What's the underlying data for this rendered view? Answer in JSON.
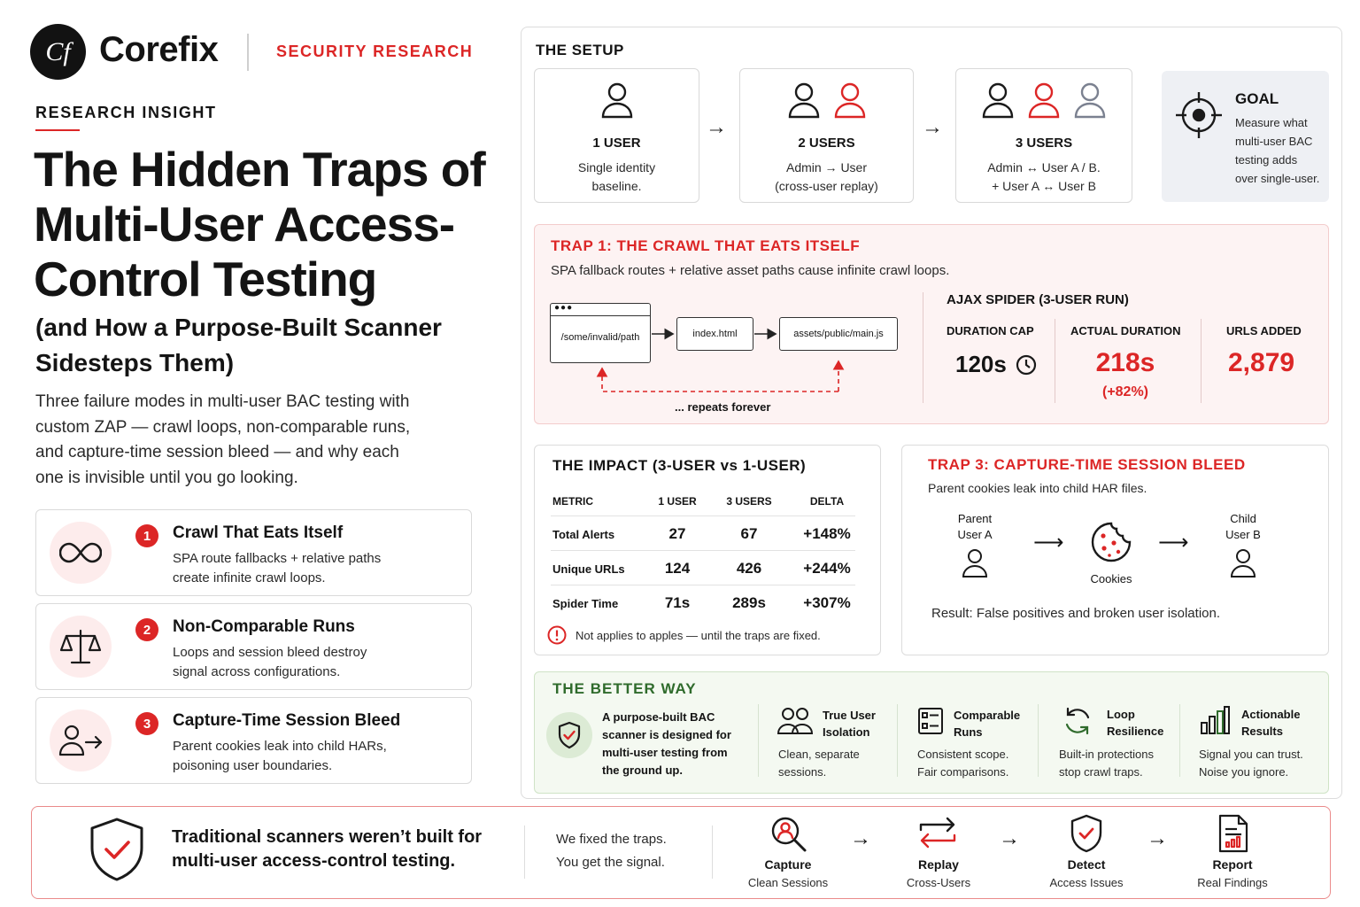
{
  "brand": {
    "logo_mark": "Cf",
    "name": "Corefix",
    "tag": "SECURITY RESEARCH"
  },
  "hero": {
    "kicker": "RESEARCH INSIGHT",
    "title_lines": [
      "The Hidden Traps of",
      "Multi-User Access-",
      "Control Testing"
    ],
    "subtitle_lines": [
      "(and How a Purpose-Built Scanner",
      "Sidesteps Them)"
    ],
    "lead_lines": [
      "Three failure modes in multi-user BAC testing with",
      "custom ZAP — crawl loops, non-comparable runs,",
      "and capture-time session bleed — and why each",
      "one is invisible until you go looking."
    ]
  },
  "traps": [
    {
      "num": "1",
      "title": "Crawl That Eats Itself",
      "desc_lines": [
        "SPA route fallbacks + relative paths",
        "create infinite crawl loops."
      ],
      "icon": "infinity-icon"
    },
    {
      "num": "2",
      "title": "Non-Comparable Runs",
      "desc_lines": [
        "Loops and session bleed destroy",
        "signal across configurations."
      ],
      "icon": "scale-icon"
    },
    {
      "num": "3",
      "title": "Capture-Time Session Bleed",
      "desc_lines": [
        "Parent cookies leak into child HARs,",
        "poisoning user boundaries."
      ],
      "icon": "user-transfer-icon"
    }
  ],
  "setup": {
    "title": "THE SETUP",
    "cards": [
      {
        "title": "1 USER",
        "desc_lines": [
          "Single identity",
          "baseline."
        ]
      },
      {
        "title": "2 USERS",
        "desc_lines": [
          "Admin → User",
          "(cross-user replay)"
        ]
      },
      {
        "title": "3 USERS",
        "desc_lines": [
          "Admin ↔ User A / B.",
          "+ User A ↔ User B"
        ]
      }
    ],
    "arrow": "→",
    "goal": {
      "title": "GOAL",
      "desc_lines": [
        "Measure what",
        "multi-user BAC",
        "testing adds",
        "over single-user."
      ]
    }
  },
  "trap1": {
    "title": "TRAP 1: THE CRAWL THAT EATS ITSELF",
    "subtitle": "SPA fallback routes + relative asset paths cause infinite crawl loops.",
    "route_path": "/some/invalid/path",
    "route_index": "index.html",
    "route_asset": "assets/public/main.js",
    "repeats": "... repeats forever",
    "ajax_title": "AJAX SPIDER (3-USER RUN)",
    "stats": [
      {
        "label": "DURATION CAP",
        "value": "120s",
        "note": ""
      },
      {
        "label": "ACTUAL DURATION",
        "value": "218s",
        "note": "(+82%)"
      },
      {
        "label": "URLS ADDED",
        "value": "2,879",
        "note": ""
      }
    ]
  },
  "impact": {
    "title": "THE IMPACT (3-USER vs 1-USER)",
    "headers": [
      "METRIC",
      "1 USER",
      "3 USERS",
      "DELTA"
    ],
    "rows": [
      [
        "Total Alerts",
        "27",
        "67",
        "+148%"
      ],
      [
        "Unique URLs",
        "124",
        "426",
        "+244%"
      ],
      [
        "Spider Time",
        "71s",
        "289s",
        "+307%"
      ]
    ],
    "note": "Not applies to apples — until the traps are fixed."
  },
  "trap3": {
    "title": "TRAP 3: CAPTURE-TIME SESSION BLEED",
    "subtitle": "Parent cookies leak into child HAR files.",
    "parent_lines": [
      "Parent",
      "User A"
    ],
    "child_lines": [
      "Child",
      "User B"
    ],
    "cookies": "Cookies",
    "arrow": "⟶",
    "result": "Result: False positives and broken user isolation."
  },
  "better": {
    "title": "THE BETTER WAY",
    "lead_lines": [
      "A purpose-built BAC",
      "scanner is designed for",
      "multi-user testing from",
      "the ground up."
    ],
    "features": [
      {
        "title_lines": [
          "True User",
          "Isolation"
        ],
        "desc_lines": [
          "Clean, separate",
          "sessions."
        ],
        "icon": "users-icon"
      },
      {
        "title_lines": [
          "Comparable",
          "Runs"
        ],
        "desc_lines": [
          "Consistent scope.",
          "Fair comparisons."
        ],
        "icon": "checklist-icon"
      },
      {
        "title_lines": [
          "Loop",
          "Resilience"
        ],
        "desc_lines": [
          "Built-in protections",
          "stop crawl traps."
        ],
        "icon": "refresh-icon"
      },
      {
        "title_lines": [
          "Actionable",
          "Results"
        ],
        "desc_lines": [
          "Signal you can trust.",
          "Noise you ignore."
        ],
        "icon": "bar-chart-icon"
      }
    ]
  },
  "banner": {
    "headline_lines": [
      "Traditional scanners weren’t built for",
      "multi-user access-control testing."
    ],
    "sub_lines": [
      "We fixed the traps.",
      "You get the signal."
    ],
    "arrow": "→",
    "steps": [
      {
        "title": "Capture",
        "desc": "Clean Sessions",
        "icon": "search-user-icon"
      },
      {
        "title": "Replay",
        "desc": "Cross-Users",
        "icon": "replay-icon"
      },
      {
        "title": "Detect",
        "desc": "Access Issues",
        "icon": "shield-check-icon"
      },
      {
        "title": "Report",
        "desc": "Real Findings",
        "icon": "report-icon"
      }
    ]
  },
  "colors": {
    "accent": "#dc2626",
    "ink": "#141414",
    "green": "#2f6b2c",
    "trap_bg": "#fdf3f3",
    "better_bg": "#f4f9f1"
  }
}
